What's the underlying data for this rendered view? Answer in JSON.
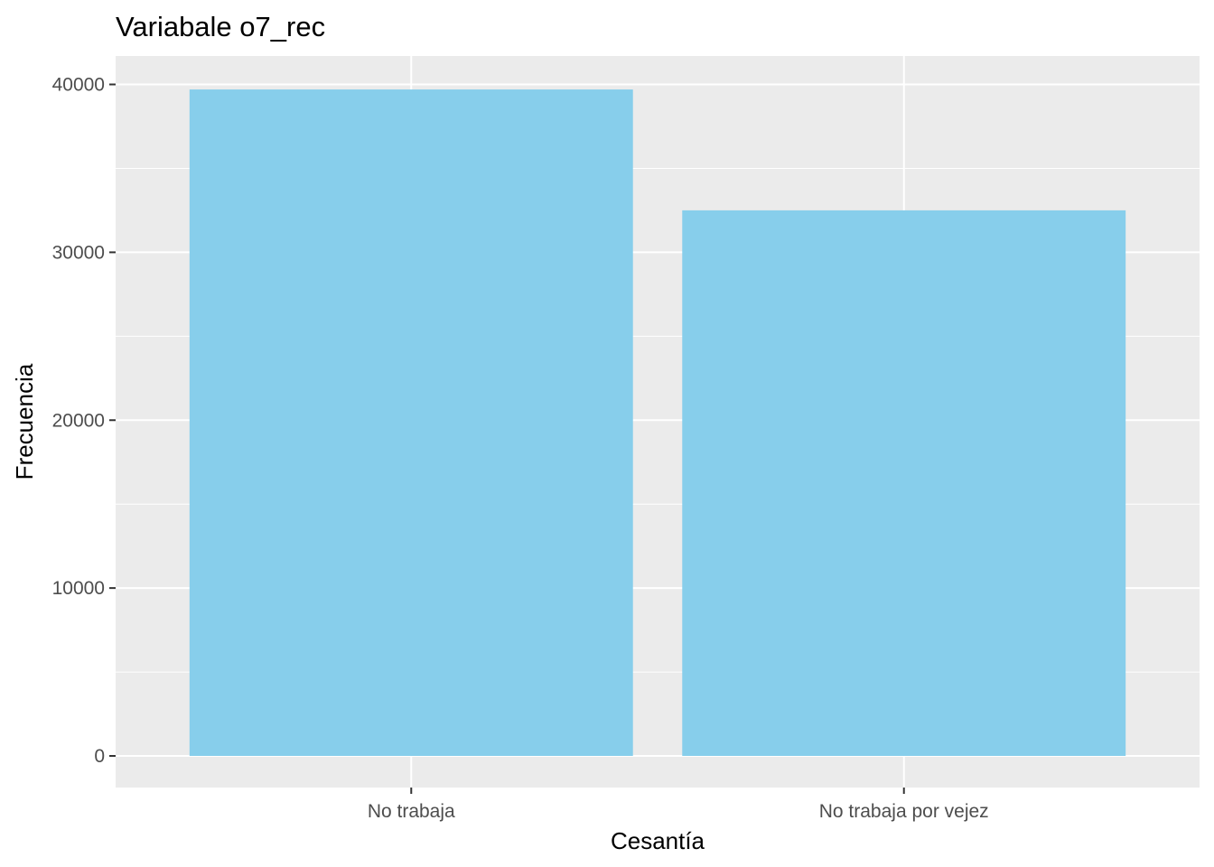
{
  "chart_data": {
    "type": "bar",
    "title": "Variabale o7_rec",
    "xlabel": "Cesantía",
    "ylabel": "Frecuencia",
    "categories": [
      "No trabaja",
      "No trabaja por vejez"
    ],
    "values": [
      39700,
      32500
    ],
    "ylim": [
      0,
      41900
    ],
    "yticks": [
      0,
      10000,
      20000,
      30000,
      40000
    ],
    "ytick_labels": [
      "0",
      "10000",
      "20000",
      "30000",
      "40000"
    ],
    "grid": true,
    "legend": "none",
    "colors": {
      "bar": "#87CEEB",
      "panel_background": "#EBEBEB",
      "grid": "#FFFFFF",
      "tick_text": "#4D4D4D",
      "tick_mark": "#333333"
    }
  }
}
